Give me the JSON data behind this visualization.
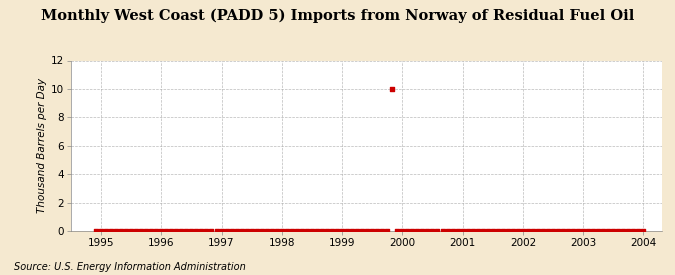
{
  "title": "Monthly West Coast (PADD 5) Imports from Norway of Residual Fuel Oil",
  "ylabel": "Thousand Barrels per Day",
  "source": "Source: U.S. Energy Information Administration",
  "xlim": [
    1994.5,
    2004.3
  ],
  "ylim": [
    0,
    12
  ],
  "yticks": [
    0,
    2,
    4,
    6,
    8,
    10,
    12
  ],
  "xticks": [
    1995,
    1996,
    1997,
    1998,
    1999,
    2000,
    2001,
    2002,
    2003,
    2004
  ],
  "background_color": "#f5e9d0",
  "plot_background_color": "#ffffff",
  "marker_color": "#cc0000",
  "grid_color": "#aaaaaa",
  "title_fontsize": 10.5,
  "label_fontsize": 7.5,
  "tick_fontsize": 7.5,
  "source_fontsize": 7,
  "data_x": [
    1994.917,
    1995.0,
    1995.083,
    1995.167,
    1995.25,
    1995.333,
    1995.417,
    1995.5,
    1995.583,
    1995.667,
    1995.75,
    1995.833,
    1995.917,
    1996.0,
    1996.083,
    1996.167,
    1996.25,
    1996.333,
    1996.417,
    1996.5,
    1996.583,
    1996.667,
    1996.75,
    1996.833,
    1996.917,
    1997.0,
    1997.083,
    1997.167,
    1997.25,
    1997.333,
    1997.417,
    1997.5,
    1997.583,
    1997.667,
    1997.75,
    1997.833,
    1997.917,
    1998.0,
    1998.083,
    1998.167,
    1998.25,
    1998.333,
    1998.417,
    1998.5,
    1998.583,
    1998.667,
    1998.75,
    1998.833,
    1998.917,
    1999.0,
    1999.083,
    1999.167,
    1999.25,
    1999.333,
    1999.417,
    1999.5,
    1999.583,
    1999.667,
    1999.75,
    1999.833,
    1999.917,
    2000.0,
    2000.083,
    2000.167,
    2000.25,
    2000.333,
    2000.417,
    2000.5,
    2000.583,
    2000.667,
    2000.75,
    2000.833,
    2000.917,
    2001.0,
    2001.083,
    2001.167,
    2001.25,
    2001.333,
    2001.417,
    2001.5,
    2001.583,
    2001.667,
    2001.75,
    2001.833,
    2001.917,
    2002.0,
    2002.083,
    2002.167,
    2002.25,
    2002.333,
    2002.417,
    2002.5,
    2002.583,
    2002.667,
    2002.75,
    2002.833,
    2002.917,
    2003.0,
    2003.083,
    2003.167,
    2003.25,
    2003.333,
    2003.417,
    2003.5,
    2003.583,
    2003.667,
    2003.75,
    2003.833,
    2003.917,
    2004.0
  ],
  "data_y": [
    0,
    0,
    0,
    0,
    0,
    0,
    0,
    0,
    0,
    0,
    0,
    0,
    0,
    0,
    0,
    0,
    0,
    0,
    0,
    0,
    0,
    0,
    0,
    0,
    0,
    0,
    0,
    0,
    0,
    0,
    0,
    0,
    0,
    0,
    0,
    0,
    0,
    0,
    0,
    0,
    0,
    0,
    0,
    0,
    0,
    0,
    0,
    0,
    0,
    0,
    0,
    0,
    0,
    0,
    0,
    0,
    0,
    0,
    0,
    10,
    0,
    0,
    0,
    0,
    0,
    0,
    0,
    0,
    0,
    0,
    0,
    0,
    0,
    0,
    0,
    0,
    0,
    0,
    0,
    0,
    0,
    0,
    0,
    0,
    0,
    0,
    0,
    0,
    0,
    0,
    0,
    0,
    0,
    0,
    0,
    0,
    0,
    0,
    0,
    0,
    0,
    0,
    0,
    0,
    0,
    0,
    0,
    0,
    0,
    0
  ]
}
